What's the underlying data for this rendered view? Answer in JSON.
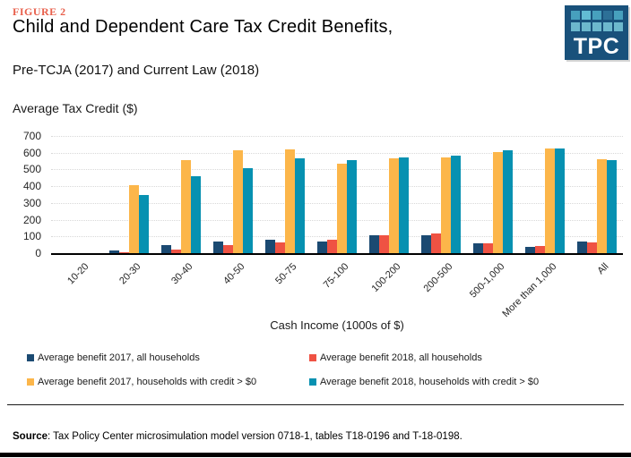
{
  "header": {
    "figure_label": "FIGURE 2",
    "title": "Child and Dependent Care Tax Credit Benefits,",
    "subtitle": "Pre-TCJA (2017) and Current Law (2018)"
  },
  "logo": {
    "text": "TPC",
    "background": "#19517b",
    "row1_colors": [
      "#47a0bd",
      "#62bcd4",
      "#47a0bd",
      "#2d7097",
      "#47a0bd"
    ],
    "row2_colors": [
      "#6db8cd",
      "#6db8cd",
      "#6db8cd",
      "#6db8cd",
      "#6db8cd"
    ]
  },
  "chart_data": {
    "type": "bar",
    "title": "",
    "ylabel": "Average Tax Credit ($)",
    "xlabel": "Cash Income (1000s of $)",
    "ylim": [
      0,
      700
    ],
    "ytick_step": 100,
    "grid": "horizontal-dotted",
    "legend_position": "bottom",
    "categories": [
      "10-20",
      "20-30",
      "30-40",
      "40-50",
      "50-75",
      "75-100",
      "100-200",
      "200-500",
      "500-1,000",
      "More than 1,000",
      "All"
    ],
    "series": [
      {
        "name": "Average benefit 2017, all households",
        "color": "#1b4a72",
        "values": [
          0,
          15,
          50,
          72,
          80,
          72,
          107,
          105,
          61,
          39,
          72
        ]
      },
      {
        "name": "Average benefit 2018, all households",
        "color": "#ef5243",
        "values": [
          0,
          3,
          22,
          50,
          63,
          80,
          107,
          118,
          58,
          43,
          62
        ]
      },
      {
        "name": "Average benefit 2017, households with credit > $0",
        "color": "#fcb64a",
        "values": [
          0,
          404,
          555,
          614,
          620,
          533,
          564,
          571,
          603,
          627,
          563
        ]
      },
      {
        "name": "Average benefit 2018, households with credit > $0",
        "color": "#0791b1",
        "values": [
          0,
          349,
          460,
          506,
          564,
          554,
          574,
          585,
          616,
          626,
          556
        ]
      }
    ]
  },
  "source": {
    "label": "Source",
    "text": ": Tax Policy Center microsimulation model version 0718-1,  tables T18-0196  and T-18-0198."
  }
}
